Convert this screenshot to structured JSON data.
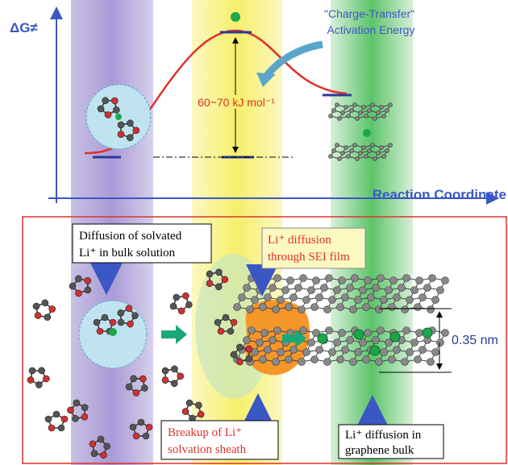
{
  "energy_diagram": {
    "y_axis_label": "ΔG≠",
    "x_axis_label": "Reaction Coordinate",
    "annotation": {
      "lines": [
        "\"Charge-Transfer\"",
        "Activation Energy"
      ]
    },
    "barrier_label": "60~70 kJ mol⁻¹"
  },
  "process_panel": {
    "boxes": [
      {
        "lines": [
          "Diffusion of solvated",
          "Li⁺ in bulk solution"
        ]
      },
      {
        "lines": [
          "Li⁺ diffusion",
          "through SEI film"
        ]
      },
      {
        "lines": [
          "Breakup of Li⁺",
          "solvation sheath"
        ]
      },
      {
        "lines": [
          "Li⁺ diffusion in",
          "graphene bulk"
        ]
      }
    ],
    "spacing_label": "0.35 nm"
  }
}
